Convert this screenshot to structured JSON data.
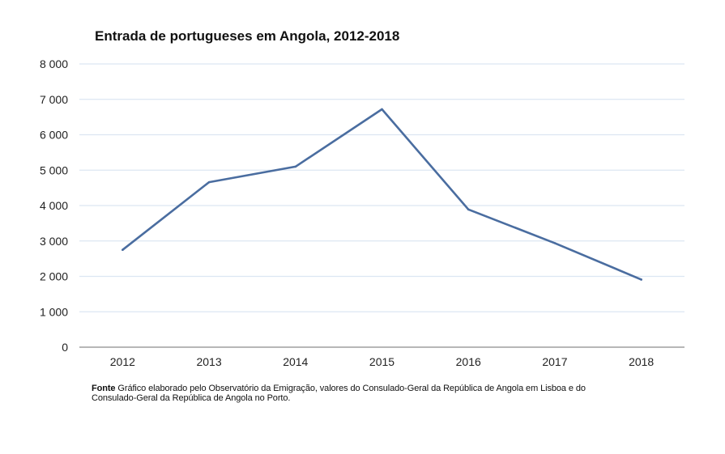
{
  "chart_data": {
    "type": "line",
    "title": "Entrada de portugueses em Angola, 2012-2018",
    "xlabel": "",
    "ylabel": "",
    "categories": [
      "2012",
      "2013",
      "2014",
      "2015",
      "2016",
      "2017",
      "2018"
    ],
    "series": [
      {
        "name": "Entrada de portugueses em Angola",
        "values": [
          2750,
          4660,
          5100,
          6720,
          3890,
          2940,
          1910
        ],
        "color": "#4a6da0"
      }
    ],
    "ylim": [
      0,
      8000
    ],
    "yticks": [
      0,
      1000,
      2000,
      3000,
      4000,
      5000,
      6000,
      7000,
      8000
    ],
    "ytick_labels": [
      "0",
      "1 000",
      "2 000",
      "3 000",
      "4 000",
      "5 000",
      "6 000",
      "7 000",
      "8 000"
    ],
    "grid": true,
    "legend": "none"
  },
  "source": {
    "label": "Fonte",
    "text": "Gráfico elaborado pelo Observatório da Emigração, valores do Consulado-Geral da República de Angola em Lisboa e do Consulado-Geral da República de Angola no Porto."
  }
}
